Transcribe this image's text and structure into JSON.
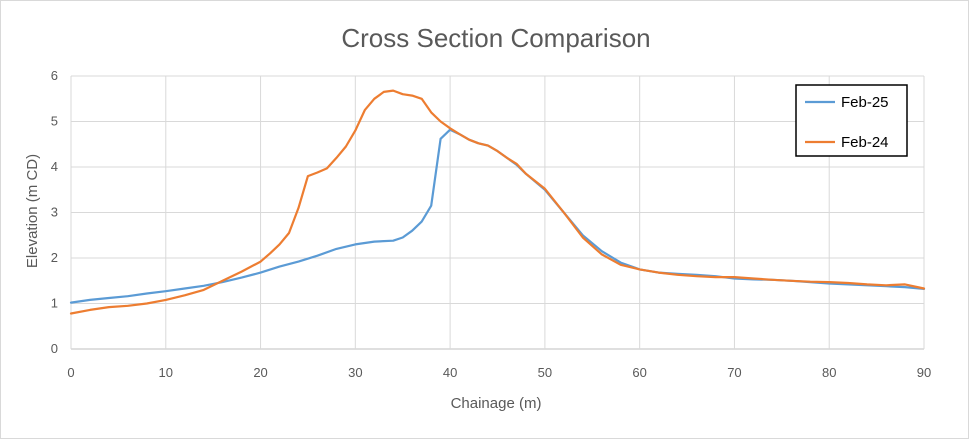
{
  "chart_data": {
    "type": "line",
    "title": "Cross Section Comparison",
    "xlabel": "Chainage (m)",
    "ylabel": "Elevation (m CD)",
    "xlim": [
      0,
      90
    ],
    "ylim": [
      0,
      6
    ],
    "xticks": [
      "0",
      "10",
      "20",
      "30",
      "40",
      "50",
      "60",
      "70",
      "80",
      "90"
    ],
    "yticks": [
      "0",
      "1",
      "2",
      "3",
      "4",
      "5",
      "6"
    ],
    "grid": true,
    "legend_position": "top-right",
    "series": [
      {
        "name": "Feb-25",
        "color": "#5b9bd5",
        "x": [
          0,
          2,
          4,
          6,
          8,
          10,
          12,
          14,
          16,
          18,
          20,
          22,
          24,
          26,
          28,
          30,
          32,
          34,
          35,
          36,
          37,
          38,
          39,
          40,
          41,
          42,
          43,
          44,
          45,
          46,
          47,
          48,
          50,
          52,
          54,
          56,
          58,
          60,
          62,
          64,
          66,
          68,
          70,
          72,
          74,
          76,
          78,
          80,
          82,
          84,
          86,
          88,
          90
        ],
        "y": [
          1.02,
          1.08,
          1.12,
          1.16,
          1.22,
          1.27,
          1.33,
          1.39,
          1.47,
          1.57,
          1.68,
          1.81,
          1.92,
          2.05,
          2.2,
          2.3,
          2.36,
          2.38,
          2.45,
          2.6,
          2.8,
          3.15,
          4.62,
          4.82,
          4.72,
          4.6,
          4.52,
          4.47,
          4.35,
          4.2,
          4.05,
          3.85,
          3.5,
          3.0,
          2.5,
          2.15,
          1.9,
          1.75,
          1.68,
          1.65,
          1.63,
          1.6,
          1.55,
          1.53,
          1.52,
          1.5,
          1.47,
          1.44,
          1.42,
          1.4,
          1.38,
          1.36,
          1.32
        ]
      },
      {
        "name": "Feb-24",
        "color": "#ed7d31",
        "x": [
          0,
          2,
          4,
          6,
          8,
          10,
          12,
          14,
          16,
          18,
          20,
          21,
          22,
          23,
          24,
          25,
          26,
          27,
          28,
          29,
          30,
          31,
          32,
          33,
          34,
          35,
          36,
          37,
          38,
          39,
          40,
          41,
          42,
          43,
          44,
          45,
          46,
          47,
          48,
          50,
          52,
          54,
          56,
          58,
          60,
          62,
          64,
          66,
          68,
          70,
          72,
          74,
          76,
          78,
          80,
          82,
          84,
          86,
          88,
          90
        ],
        "y": [
          0.78,
          0.86,
          0.92,
          0.95,
          1.0,
          1.08,
          1.18,
          1.3,
          1.5,
          1.7,
          1.92,
          2.1,
          2.3,
          2.55,
          3.1,
          3.8,
          3.88,
          3.97,
          4.2,
          4.45,
          4.8,
          5.25,
          5.5,
          5.65,
          5.68,
          5.6,
          5.57,
          5.5,
          5.2,
          5.0,
          4.85,
          4.72,
          4.6,
          4.52,
          4.47,
          4.35,
          4.2,
          4.07,
          3.85,
          3.52,
          3.0,
          2.45,
          2.08,
          1.85,
          1.75,
          1.68,
          1.63,
          1.6,
          1.58,
          1.58,
          1.55,
          1.52,
          1.5,
          1.48,
          1.47,
          1.45,
          1.42,
          1.4,
          1.42,
          1.33
        ]
      }
    ]
  }
}
